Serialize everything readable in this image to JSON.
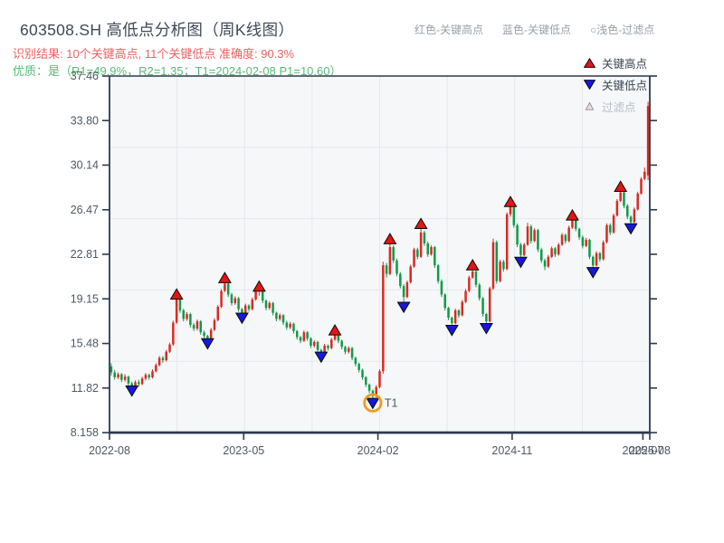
{
  "header": {
    "title": "603508.SH 高低点分析图（周K线图）",
    "recognition": "识别结果: 10个关键高点, 11个关键低点  准确度: 90.3%",
    "quality": "优质：是（R1=49.9%，R2=1.35；T1=2024-02-08 P1=10.60）",
    "hints": {
      "high": "红色-关键高点",
      "low": "蓝色-关键低点",
      "filtered": "○浅色-过滤点"
    }
  },
  "legend": {
    "items": [
      {
        "label": "关键高点"
      },
      {
        "label": "关键低点"
      },
      {
        "label": "过滤点"
      }
    ]
  },
  "style": {
    "plot_bg": "#f5f7f9",
    "grid": "#e5e8ec",
    "spine": "#2c3a4e",
    "tick_text": "#4f5865",
    "up": "#d92a21",
    "down": "#109a47",
    "marker_high": "#e31515",
    "marker_low": "#1717dd",
    "marker_edge": "#0b0b0b",
    "t1_ring": "#f09c1e",
    "t1_label": "#f6c089"
  },
  "chart_data": {
    "type": "candlestick",
    "title": "603508.SH 高低点分析图（周K线图）",
    "symbol": "603508.SH",
    "frequency": "weekly",
    "grid": true,
    "legend_position": "top-right",
    "ylim": [
      8.158,
      37.46
    ],
    "y_ticks": [
      "37.46",
      "33.80",
      "30.14",
      "26.47",
      "22.81",
      "19.15",
      "15.48",
      "11.82",
      "8.158"
    ],
    "x_ticks": [
      {
        "label": "2022-08",
        "week": 0
      },
      {
        "label": "2023-05",
        "week": 39
      },
      {
        "label": "2024-02",
        "week": 78
      },
      {
        "label": "2024-11",
        "week": 117
      },
      {
        "label": "2025-07",
        "week": 155
      },
      {
        "label": "2025-08",
        "week": 157
      }
    ],
    "candles": [
      [
        13.6,
        13.85,
        12.85,
        13.1
      ],
      [
        13.1,
        13.3,
        12.5,
        12.7
      ],
      [
        12.7,
        13.1,
        12.55,
        12.95
      ],
      [
        12.95,
        13.05,
        12.3,
        12.5
      ],
      [
        12.5,
        12.95,
        12.35,
        12.75
      ],
      [
        12.75,
        12.85,
        12.0,
        12.2
      ],
      [
        12.2,
        12.35,
        11.8,
        11.95
      ],
      [
        11.95,
        12.45,
        11.8,
        12.3
      ],
      [
        12.3,
        12.5,
        11.95,
        12.15
      ],
      [
        12.15,
        12.75,
        12.05,
        12.6
      ],
      [
        12.6,
        13.05,
        12.45,
        12.9
      ],
      [
        12.9,
        13.0,
        12.5,
        12.7
      ],
      [
        12.7,
        13.35,
        12.6,
        13.2
      ],
      [
        13.2,
        13.85,
        13.1,
        13.7
      ],
      [
        13.7,
        14.45,
        13.6,
        14.3
      ],
      [
        14.3,
        14.45,
        13.9,
        14.1
      ],
      [
        14.1,
        14.95,
        14.0,
        14.8
      ],
      [
        14.8,
        15.55,
        14.7,
        15.4
      ],
      [
        15.4,
        17.35,
        15.3,
        17.2
      ],
      [
        17.2,
        19.25,
        17.1,
        19.1
      ],
      [
        19.1,
        19.25,
        18.0,
        18.2
      ],
      [
        18.2,
        18.35,
        17.3,
        17.5
      ],
      [
        17.5,
        18.05,
        17.35,
        17.9
      ],
      [
        17.9,
        18.0,
        16.8,
        17.0
      ],
      [
        17.0,
        17.15,
        16.5,
        16.7
      ],
      [
        16.7,
        17.45,
        16.55,
        17.3
      ],
      [
        17.3,
        17.4,
        16.2,
        16.4
      ],
      [
        16.4,
        16.55,
        15.9,
        16.1
      ],
      [
        16.1,
        16.2,
        15.75,
        15.9
      ],
      [
        15.9,
        16.75,
        15.8,
        16.6
      ],
      [
        16.6,
        17.55,
        16.5,
        17.4
      ],
      [
        17.4,
        18.65,
        17.3,
        18.5
      ],
      [
        18.5,
        19.95,
        18.4,
        19.8
      ],
      [
        19.8,
        20.55,
        19.7,
        20.4
      ],
      [
        20.4,
        20.55,
        19.3,
        19.5
      ],
      [
        19.5,
        19.65,
        18.6,
        18.8
      ],
      [
        18.8,
        19.35,
        18.65,
        19.2
      ],
      [
        19.2,
        19.3,
        18.1,
        18.3
      ],
      [
        18.3,
        18.4,
        17.85,
        17.95
      ],
      [
        17.95,
        18.75,
        17.85,
        18.6
      ],
      [
        18.6,
        18.7,
        18.1,
        18.3
      ],
      [
        18.3,
        19.25,
        18.2,
        19.1
      ],
      [
        19.1,
        19.9,
        19.0,
        19.8
      ],
      [
        19.8,
        19.95,
        19.4,
        19.9
      ],
      [
        19.9,
        20.05,
        18.8,
        19.0
      ],
      [
        19.0,
        19.1,
        18.2,
        18.4
      ],
      [
        18.4,
        18.95,
        18.25,
        18.8
      ],
      [
        18.8,
        18.9,
        17.8,
        18.0
      ],
      [
        18.0,
        18.1,
        17.3,
        17.5
      ],
      [
        17.5,
        17.95,
        17.35,
        17.8
      ],
      [
        17.8,
        17.9,
        17.0,
        17.2
      ],
      [
        17.2,
        17.35,
        16.6,
        16.8
      ],
      [
        16.8,
        17.25,
        16.65,
        17.1
      ],
      [
        17.1,
        17.2,
        16.3,
        16.5
      ],
      [
        16.5,
        16.6,
        15.8,
        16.0
      ],
      [
        16.0,
        16.1,
        15.5,
        15.7
      ],
      [
        15.7,
        16.55,
        15.6,
        16.4
      ],
      [
        16.4,
        16.5,
        15.7,
        15.9
      ],
      [
        15.9,
        16.0,
        15.1,
        15.3
      ],
      [
        15.3,
        15.75,
        15.15,
        15.6
      ],
      [
        15.6,
        15.7,
        14.8,
        14.95
      ],
      [
        14.95,
        15.05,
        14.65,
        14.75
      ],
      [
        14.75,
        15.45,
        14.65,
        15.3
      ],
      [
        15.3,
        15.4,
        14.9,
        15.1
      ],
      [
        15.1,
        15.95,
        15.0,
        15.8
      ],
      [
        15.8,
        16.3,
        15.7,
        16.15
      ],
      [
        16.15,
        16.3,
        15.5,
        15.7
      ],
      [
        15.7,
        15.8,
        15.0,
        15.2
      ],
      [
        15.2,
        15.3,
        14.6,
        14.8
      ],
      [
        14.8,
        15.25,
        14.65,
        15.1
      ],
      [
        15.1,
        15.2,
        14.1,
        14.3
      ],
      [
        14.3,
        14.4,
        13.6,
        13.8
      ],
      [
        13.8,
        13.9,
        13.1,
        13.3
      ],
      [
        13.3,
        13.4,
        12.5,
        12.7
      ],
      [
        12.7,
        12.8,
        11.9,
        12.1
      ],
      [
        12.1,
        12.2,
        11.4,
        11.6
      ],
      [
        11.6,
        11.7,
        10.9,
        11.15
      ],
      [
        11.15,
        12.05,
        11.05,
        11.9
      ],
      [
        11.9,
        13.35,
        11.8,
        13.2
      ],
      [
        13.2,
        22.2,
        13.0,
        21.9
      ],
      [
        21.9,
        22.1,
        20.9,
        21.2
      ],
      [
        21.2,
        23.7,
        21.1,
        23.4
      ],
      [
        23.4,
        23.55,
        22.1,
        22.3
      ],
      [
        22.3,
        22.45,
        21.0,
        21.2
      ],
      [
        21.2,
        21.35,
        20.0,
        20.2
      ],
      [
        20.2,
        20.35,
        18.9,
        19.3
      ],
      [
        19.3,
        20.65,
        19.2,
        20.5
      ],
      [
        20.5,
        21.95,
        20.4,
        21.8
      ],
      [
        21.8,
        23.35,
        21.7,
        23.2
      ],
      [
        23.2,
        23.35,
        22.4,
        22.6
      ],
      [
        22.6,
        24.9,
        22.5,
        24.6
      ],
      [
        24.6,
        24.75,
        23.5,
        23.7
      ],
      [
        23.7,
        23.85,
        22.6,
        22.8
      ],
      [
        22.8,
        23.55,
        22.7,
        23.4
      ],
      [
        23.4,
        23.5,
        21.7,
        21.9
      ],
      [
        21.9,
        22.0,
        20.4,
        20.6
      ],
      [
        20.6,
        20.75,
        19.3,
        19.5
      ],
      [
        19.5,
        19.6,
        18.2,
        18.4
      ],
      [
        18.4,
        18.5,
        17.4,
        17.6
      ],
      [
        17.6,
        17.7,
        16.95,
        17.15
      ],
      [
        17.15,
        18.35,
        17.05,
        18.2
      ],
      [
        18.2,
        18.3,
        17.6,
        17.8
      ],
      [
        17.8,
        19.05,
        17.7,
        18.9
      ],
      [
        18.9,
        19.95,
        18.8,
        19.8
      ],
      [
        19.8,
        21.05,
        19.7,
        20.9
      ],
      [
        20.9,
        21.55,
        20.8,
        21.4
      ],
      [
        21.4,
        21.55,
        20.1,
        20.3
      ],
      [
        20.3,
        20.45,
        19.0,
        19.2
      ],
      [
        19.2,
        19.3,
        17.7,
        17.9
      ],
      [
        17.9,
        18.0,
        17.1,
        17.3
      ],
      [
        17.3,
        20.15,
        17.2,
        20.0
      ],
      [
        20.0,
        24.1,
        19.9,
        23.8
      ],
      [
        23.8,
        23.95,
        20.4,
        20.6
      ],
      [
        20.6,
        22.35,
        20.5,
        22.2
      ],
      [
        22.2,
        22.35,
        21.4,
        21.6
      ],
      [
        21.6,
        26.25,
        21.5,
        26.1
      ],
      [
        26.1,
        26.8,
        25.9,
        26.7
      ],
      [
        26.7,
        26.85,
        25.0,
        25.2
      ],
      [
        25.2,
        25.35,
        23.4,
        23.6
      ],
      [
        23.6,
        23.75,
        22.55,
        22.75
      ],
      [
        22.75,
        23.75,
        22.65,
        23.6
      ],
      [
        23.6,
        25.4,
        23.5,
        25.1
      ],
      [
        25.1,
        25.25,
        23.7,
        23.9
      ],
      [
        23.9,
        24.95,
        23.8,
        24.8
      ],
      [
        24.8,
        24.9,
        23.0,
        23.2
      ],
      [
        23.2,
        23.35,
        22.1,
        22.3
      ],
      [
        22.3,
        22.45,
        21.5,
        21.8
      ],
      [
        21.8,
        22.75,
        21.7,
        22.6
      ],
      [
        22.6,
        23.45,
        22.5,
        23.3
      ],
      [
        23.3,
        23.4,
        22.6,
        22.8
      ],
      [
        22.8,
        23.75,
        22.7,
        23.6
      ],
      [
        23.6,
        24.55,
        23.5,
        24.4
      ],
      [
        24.4,
        24.5,
        23.7,
        23.9
      ],
      [
        23.9,
        25.15,
        23.8,
        25.0
      ],
      [
        25.0,
        25.7,
        24.9,
        25.6
      ],
      [
        25.6,
        25.75,
        24.7,
        24.9
      ],
      [
        24.9,
        25.0,
        24.0,
        24.2
      ],
      [
        24.2,
        24.35,
        23.3,
        23.5
      ],
      [
        23.5,
        24.15,
        23.4,
        24.0
      ],
      [
        24.0,
        24.1,
        22.4,
        22.6
      ],
      [
        22.6,
        22.7,
        21.7,
        21.9
      ],
      [
        21.9,
        23.05,
        21.8,
        22.9
      ],
      [
        22.9,
        23.0,
        22.2,
        22.4
      ],
      [
        22.4,
        23.95,
        22.3,
        23.8
      ],
      [
        23.8,
        25.35,
        23.7,
        25.2
      ],
      [
        25.2,
        25.35,
        24.4,
        24.6
      ],
      [
        24.6,
        26.15,
        24.5,
        26.0
      ],
      [
        26.0,
        27.35,
        25.9,
        27.2
      ],
      [
        27.2,
        28.05,
        27.1,
        27.9
      ],
      [
        27.9,
        28.05,
        26.6,
        26.8
      ],
      [
        26.8,
        26.95,
        25.7,
        25.9
      ],
      [
        25.9,
        26.0,
        25.3,
        25.45
      ],
      [
        25.45,
        26.65,
        25.35,
        26.5
      ],
      [
        26.5,
        27.95,
        26.4,
        27.8
      ],
      [
        27.8,
        29.15,
        27.7,
        29.0
      ],
      [
        29.0,
        29.95,
        28.9,
        29.6
      ],
      [
        29.3,
        35.35,
        28.9,
        35.0
      ]
    ],
    "key_highs": [
      {
        "week": 19,
        "price": 19.5
      },
      {
        "week": 33,
        "price": 20.85
      },
      {
        "week": 43,
        "price": 20.15
      },
      {
        "week": 65,
        "price": 16.55
      },
      {
        "week": 81,
        "price": 24.05
      },
      {
        "week": 90,
        "price": 25.3
      },
      {
        "week": 105,
        "price": 21.9
      },
      {
        "week": 116,
        "price": 27.1
      },
      {
        "week": 134,
        "price": 26.0
      },
      {
        "week": 148,
        "price": 28.35
      }
    ],
    "key_lows": [
      {
        "week": 6,
        "price": 11.62
      },
      {
        "week": 28,
        "price": 15.5
      },
      {
        "week": 38,
        "price": 17.6
      },
      {
        "week": 61,
        "price": 14.4
      },
      {
        "week": 76,
        "price": 10.6
      },
      {
        "week": 85,
        "price": 18.5
      },
      {
        "week": 99,
        "price": 16.6
      },
      {
        "week": 109,
        "price": 16.75
      },
      {
        "week": 119,
        "price": 22.2
      },
      {
        "week": 140,
        "price": 21.35
      },
      {
        "week": 151,
        "price": 24.95
      }
    ],
    "t1": {
      "week": 76,
      "price": 10.6,
      "label": "T1",
      "date": "2024-02-08"
    }
  }
}
